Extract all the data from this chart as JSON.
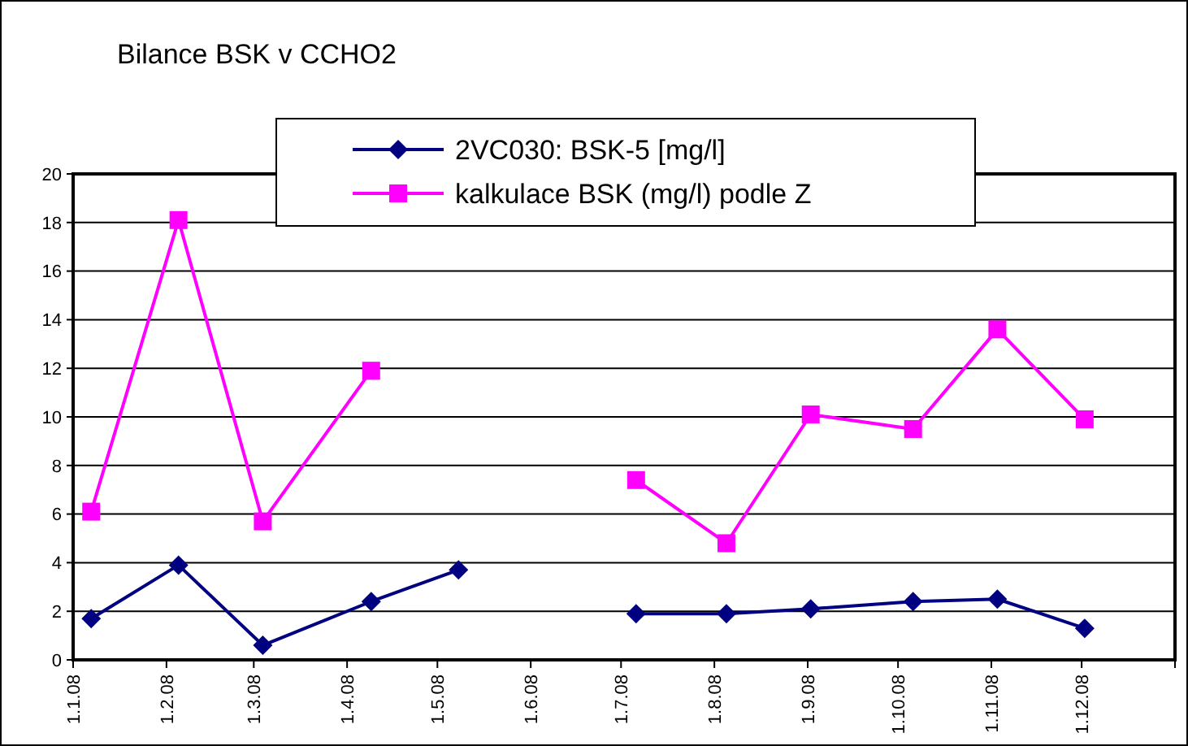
{
  "chart_data": {
    "type": "line",
    "title": "Bilance BSK v CCHO2",
    "x": [
      "2008-01-07",
      "2008-02-05",
      "2008-03-04",
      "2008-04-09",
      "2008-05-08",
      "2008-06-05",
      "2008-07-06",
      "2008-08-05",
      "2008-09-02",
      "2008-10-06",
      "2008-11-03",
      "2008-12-02"
    ],
    "series": [
      {
        "name": "2VC030: BSK-5 [mg/l]",
        "color": "#000080",
        "marker": "diamond",
        "values": [
          1.7,
          3.9,
          0.6,
          2.4,
          3.7,
          null,
          1.9,
          1.9,
          2.1,
          2.4,
          2.5,
          1.3
        ]
      },
      {
        "name": "kalkulace BSK (mg/l) podle Z",
        "color": "#ff00ff",
        "marker": "square",
        "values": [
          6.1,
          18.1,
          5.7,
          11.9,
          null,
          null,
          7.4,
          4.8,
          10.1,
          9.5,
          13.6,
          9.9
        ]
      }
    ],
    "xlim": [
      "2008-01-01",
      "2009-01-01"
    ],
    "xticks": [
      {
        "value": "2008-01-01",
        "label": "1.1.08"
      },
      {
        "value": "2008-02-01",
        "label": "1.2.08"
      },
      {
        "value": "2008-03-01",
        "label": "1.3.08"
      },
      {
        "value": "2008-04-01",
        "label": "1.4.08"
      },
      {
        "value": "2008-05-01",
        "label": "1.5.08"
      },
      {
        "value": "2008-06-01",
        "label": "1.6.08"
      },
      {
        "value": "2008-07-01",
        "label": "1.7.08"
      },
      {
        "value": "2008-08-01",
        "label": "1.8.08"
      },
      {
        "value": "2008-09-01",
        "label": "1.9.08"
      },
      {
        "value": "2008-10-01",
        "label": "1.10.08"
      },
      {
        "value": "2008-11-01",
        "label": "1.11.08"
      },
      {
        "value": "2008-12-01",
        "label": "1.12.08"
      },
      {
        "value": "2009-01-01",
        "label": null
      }
    ],
    "ylim": [
      0,
      20
    ],
    "yticks": [
      0,
      2,
      4,
      6,
      8,
      10,
      12,
      14,
      16,
      18,
      20
    ],
    "grid": "y",
    "legend": "top",
    "line_style": "solid"
  }
}
